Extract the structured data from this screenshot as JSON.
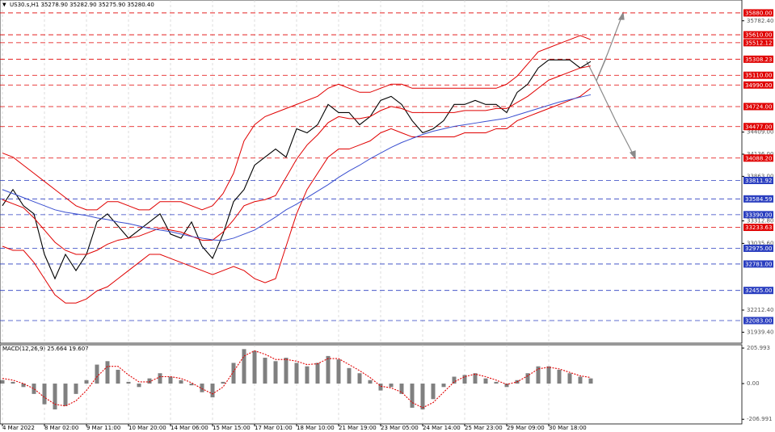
{
  "chart_data": [
    {
      "type": "line",
      "title": "US30.s,H1 35278.90 35282.90 35275.90 35280.40",
      "categories": [
        "4 Mar 2022",
        null,
        null,
        null,
        "8 Mar 02:00",
        null,
        null,
        null,
        "9 Mar 11:00",
        null,
        null,
        null,
        "10 Mar 20:00",
        null,
        null,
        null,
        "14 Mar 06:00",
        null,
        null,
        null,
        "15 Mar 15:00",
        null,
        null,
        null,
        "17 Mar 01:00",
        null,
        null,
        null,
        "18 Mar 10:00",
        null,
        null,
        null,
        "21 Mar 19:00",
        null,
        null,
        null,
        "23 Mar 05:00",
        null,
        null,
        null,
        "24 Mar 14:00",
        null,
        null,
        null,
        "25 Mar 23:00",
        null,
        null,
        null,
        "29 Mar 09:00",
        null,
        null,
        null,
        "30 Mar 18:00",
        null,
        null,
        null,
        null
      ],
      "series": [
        {
          "color": "#000000",
          "values": [
            33500,
            33700,
            33500,
            33400,
            32900,
            32600,
            32900,
            32700,
            32900,
            33300,
            33400,
            33250,
            33100,
            33200,
            33300,
            33400,
            33150,
            33100,
            33300,
            33000,
            32850,
            33150,
            33550,
            33700,
            34000,
            34100,
            34200,
            34100,
            34450,
            34400,
            34500,
            34750,
            34650,
            34650,
            34500,
            34600,
            34800,
            34850,
            34750,
            34550,
            34400,
            34450,
            34550,
            34750,
            34750,
            34800,
            34750,
            34750,
            34650,
            34900,
            35000,
            35200,
            35300,
            35300,
            35300,
            35200,
            35280
          ]
        },
        {
          "color": "#e00000",
          "values": [
            34150,
            34100,
            34000,
            33900,
            33800,
            33700,
            33600,
            33500,
            33450,
            33450,
            33550,
            33550,
            33500,
            33450,
            33450,
            33550,
            33550,
            33550,
            33500,
            33450,
            33500,
            33650,
            33900,
            34300,
            34500,
            34600,
            34650,
            34700,
            34750,
            34800,
            34850,
            34950,
            35000,
            34950,
            34900,
            34900,
            34950,
            35000,
            35000,
            34950,
            34950,
            34950,
            34950,
            34950,
            34950,
            34950,
            34950,
            34950,
            35000,
            35100,
            35250,
            35400,
            35450,
            35500,
            35550,
            35600,
            35550
          ]
        },
        {
          "color": "#e00000",
          "values": [
            33575,
            33525,
            33475,
            33350,
            33200,
            33050,
            32950,
            32900,
            32900,
            32950,
            33025,
            33075,
            33100,
            33125,
            33175,
            33225,
            33200,
            33175,
            33125,
            33075,
            33075,
            33175,
            33325,
            33500,
            33550,
            33575,
            33625,
            33850,
            34075,
            34250,
            34375,
            34525,
            34600,
            34575,
            34575,
            34600,
            34675,
            34725,
            34700,
            34650,
            34650,
            34650,
            34650,
            34650,
            34675,
            34675,
            34675,
            34700,
            34700,
            34775,
            34850,
            34950,
            35050,
            35100,
            35150,
            35200,
            35225
          ]
        },
        {
          "color": "#e00000",
          "values": [
            33000,
            32950,
            32950,
            32800,
            32600,
            32400,
            32300,
            32300,
            32350,
            32450,
            32500,
            32600,
            32700,
            32800,
            32900,
            32900,
            32850,
            32800,
            32750,
            32700,
            32650,
            32700,
            32750,
            32700,
            32600,
            32550,
            32600,
            33000,
            33400,
            33700,
            33900,
            34100,
            34200,
            34200,
            34250,
            34300,
            34400,
            34450,
            34400,
            34350,
            34350,
            34350,
            34350,
            34350,
            34400,
            34400,
            34400,
            34450,
            34450,
            34550,
            34600,
            34650,
            34700,
            34750,
            34800,
            34850,
            34950
          ]
        },
        {
          "color": "#3a4fd0",
          "values": [
            33700,
            33650,
            33600,
            33550,
            33500,
            33450,
            33420,
            33400,
            33380,
            33350,
            33330,
            33300,
            33280,
            33250,
            33220,
            33200,
            33180,
            33150,
            33120,
            33100,
            33080,
            33070,
            33100,
            33150,
            33200,
            33280,
            33360,
            33450,
            33520,
            33600,
            33680,
            33760,
            33850,
            33930,
            34000,
            34080,
            34150,
            34220,
            34280,
            34330,
            34380,
            34420,
            34450,
            34480,
            34500,
            34520,
            34540,
            34560,
            34580,
            34620,
            34660,
            34700,
            34740,
            34780,
            34810,
            34840,
            34870
          ]
        }
      ],
      "ylim": [
        31804,
        36039
      ],
      "yticks": [
        {
          "value": 35782.4,
          "label": "35782.40"
        },
        {
          "value": 34409,
          "label": "34409.00"
        },
        {
          "value": 34136,
          "label": "34136.00"
        },
        {
          "value": 33863,
          "label": "33863.00"
        },
        {
          "value": 33312.8,
          "label": "33312.80"
        },
        {
          "value": 33035.6,
          "label": "33035.60"
        },
        {
          "value": 32212.4,
          "label": "32212.40"
        },
        {
          "value": 31939.4,
          "label": "31939.40"
        }
      ],
      "levels": [
        {
          "value": 35880,
          "label": "35880.00",
          "color": "#e00000"
        },
        {
          "value": 35610,
          "label": "35610.00",
          "color": "#e00000"
        },
        {
          "value": 35512.12,
          "label": "35512.12",
          "color": "#e00000"
        },
        {
          "value": 35308.23,
          "label": "35308.23",
          "color": "#e00000"
        },
        {
          "value": 35110,
          "label": "35110.00",
          "color": "#e00000"
        },
        {
          "value": 34990,
          "label": "34990.00",
          "color": "#e00000"
        },
        {
          "value": 34724,
          "label": "34724.00",
          "color": "#e00000"
        },
        {
          "value": 34477,
          "label": "34477.00",
          "color": "#e00000"
        },
        {
          "value": 34088.2,
          "label": "34088.20",
          "color": "#e00000"
        },
        {
          "value": 33811.92,
          "label": "33811.92",
          "color": "#2b3fc0"
        },
        {
          "value": 33584.59,
          "label": "33584.59",
          "color": "#2b3fc0"
        },
        {
          "value": 33390,
          "label": "33390.00",
          "color": "#2b3fc0"
        },
        {
          "value": 33233.63,
          "label": "33233.63",
          "color": "#e00000"
        },
        {
          "value": 32975,
          "label": "32975.00",
          "color": "#2b3fc0"
        },
        {
          "value": 32781,
          "label": "32781.00",
          "color": "#2b3fc0"
        },
        {
          "value": 32455,
          "label": "32455.00",
          "color": "#2b3fc0"
        },
        {
          "value": 32083,
          "label": "32083.00",
          "color": "#2b3fc0"
        }
      ],
      "grid": true
    },
    {
      "type": "bar",
      "title": "MACD(12,26,9) 25.664 19.607",
      "color": "#808080",
      "values": [
        20,
        10,
        -20,
        -60,
        -120,
        -150,
        -130,
        -60,
        20,
        110,
        130,
        80,
        10,
        -20,
        30,
        60,
        40,
        20,
        -10,
        -50,
        -80,
        10,
        120,
        200,
        190,
        150,
        130,
        150,
        120,
        100,
        120,
        160,
        140,
        90,
        60,
        20,
        -40,
        -20,
        -60,
        -140,
        -150,
        -90,
        -20,
        40,
        50,
        60,
        30,
        10,
        -20,
        20,
        60,
        100,
        100,
        80,
        60,
        40,
        30
      ],
      "series": [
        {
          "color": "#e00000",
          "values": [
            30,
            20,
            0,
            -30,
            -80,
            -120,
            -130,
            -100,
            -40,
            40,
            100,
            100,
            50,
            10,
            10,
            40,
            40,
            30,
            5,
            -30,
            -60,
            -20,
            70,
            160,
            190,
            170,
            140,
            140,
            130,
            110,
            115,
            145,
            145,
            110,
            75,
            35,
            -15,
            -25,
            -50,
            -110,
            -140,
            -110,
            -50,
            10,
            40,
            55,
            40,
            20,
            -5,
            10,
            45,
            85,
            95,
            85,
            65,
            45,
            35
          ]
        }
      ],
      "ylim": [
        -234,
        225
      ],
      "yticks": [
        205.993,
        {
          "value": 0,
          "label": "0.00"
        },
        -206.991
      ]
    }
  ]
}
